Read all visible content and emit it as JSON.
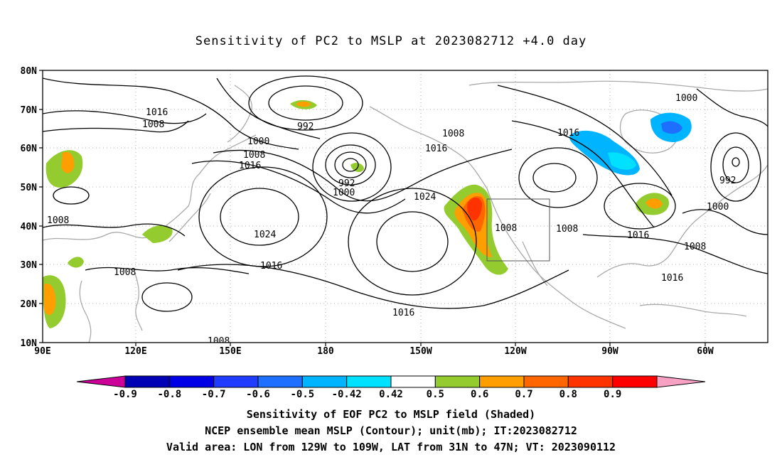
{
  "title": "Sensitivity of PC2 to MSLP at 2023082712 +4.0 day",
  "map": {
    "lat_labels": [
      "80N",
      "70N",
      "60N",
      "50N",
      "40N",
      "30N",
      "20N",
      "10N"
    ],
    "lon_labels": [
      "90E",
      "120E",
      "150E",
      "180",
      "150W",
      "120W",
      "90W",
      "60W"
    ],
    "contour_labels": [
      {
        "text": "1016"
      },
      {
        "text": "1008"
      },
      {
        "text": "992"
      },
      {
        "text": "1000"
      },
      {
        "text": "1008"
      },
      {
        "text": "1016"
      },
      {
        "text": "992"
      },
      {
        "text": "1000"
      },
      {
        "text": "1008"
      },
      {
        "text": "1016"
      },
      {
        "text": "1024"
      },
      {
        "text": "1024"
      },
      {
        "text": "1008"
      },
      {
        "text": "1008"
      },
      {
        "text": "1016"
      },
      {
        "text": "1008"
      },
      {
        "text": "1016"
      },
      {
        "text": "1008"
      },
      {
        "text": "1008"
      },
      {
        "text": "1016"
      },
      {
        "text": "1016"
      },
      {
        "text": "1000"
      },
      {
        "text": "992"
      },
      {
        "text": "1000"
      },
      {
        "text": "1008"
      },
      {
        "text": "1016"
      },
      {
        "text": "1008"
      }
    ],
    "valid_area_box": {
      "lon_min": -129,
      "lon_max": -109,
      "lat_min": 31,
      "lat_max": 47
    }
  },
  "colorbar": {
    "labels": [
      "-0.9",
      "-0.8",
      "-0.7",
      "-0.6",
      "-0.5",
      "-0.42",
      "0.42",
      "0.5",
      "0.6",
      "0.7",
      "0.8",
      "0.9"
    ],
    "colors": [
      "#cc0099",
      "#0000b4",
      "#0000e6",
      "#1f3cff",
      "#1e6eff",
      "#00b4ff",
      "#00e1ff",
      "#ffffff",
      "#94cc30",
      "#ff9e00",
      "#ff6600",
      "#ff3300",
      "#ff0000",
      "#f7a1c5"
    ]
  },
  "shading_colors": {
    "green": "#94cc30",
    "orange": "#ff9e00",
    "dark_orange": "#ff6600",
    "red": "#ff3300",
    "light_blue": "#00b4ff",
    "cyan": "#00e1ff",
    "mid_blue": "#1e6eff"
  },
  "captions": [
    "Sensitivity of EOF PC2 to MSLP field (Shaded)",
    "NCEP ensemble mean MSLP (Contour); unit(mb); IT:2023082712",
    "Valid area: LON from 129W to 109W, LAT from 31N to 47N; VT: 2023090112"
  ]
}
